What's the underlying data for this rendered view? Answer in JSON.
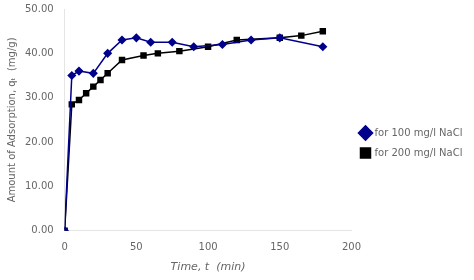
{
  "chart_data": {
    "type": "line",
    "xlabel": "Time, t  (min)",
    "ylabel": "Amount of Adsorption, qₜ  (mg/g)",
    "series": [
      {
        "name": "for 100 mg/l NaCl",
        "color": "#00008B",
        "marker": "diamond",
        "x": [
          0,
          5,
          10,
          20,
          30,
          40,
          50,
          60,
          75,
          90,
          110,
          130,
          150,
          180
        ],
        "values": [
          0.0,
          35.0,
          36.0,
          35.5,
          40.0,
          43.0,
          43.5,
          42.5,
          42.5,
          41.5,
          42.0,
          43.0,
          43.5,
          41.5
        ]
      },
      {
        "name": "for 200 mg/l NaCl",
        "color": "#000000",
        "marker": "square",
        "x": [
          0,
          5,
          10,
          15,
          20,
          25,
          30,
          40,
          55,
          65,
          80,
          100,
          120,
          150,
          165,
          180
        ],
        "values": [
          0.0,
          28.5,
          29.5,
          31.0,
          32.5,
          34.0,
          35.5,
          38.5,
          39.5,
          40.0,
          40.5,
          41.5,
          43.0,
          43.5,
          44.0,
          45.0
        ]
      }
    ],
    "xlim": [
      0,
      200
    ],
    "xticks": [
      0,
      50,
      100,
      150,
      200
    ],
    "ylim": [
      0.0,
      50.0
    ],
    "yticks": [
      {
        "value": 0.0,
        "label": "0.00"
      },
      {
        "value": 10.0,
        "label": "10.00"
      },
      {
        "value": 20.0,
        "label": "20.00"
      },
      {
        "value": 30.0,
        "label": "30.00"
      },
      {
        "value": 40.0,
        "label": "40.00"
      },
      {
        "value": 50.0,
        "label": "50.00"
      }
    ],
    "legend": "center right",
    "grid": false
  }
}
